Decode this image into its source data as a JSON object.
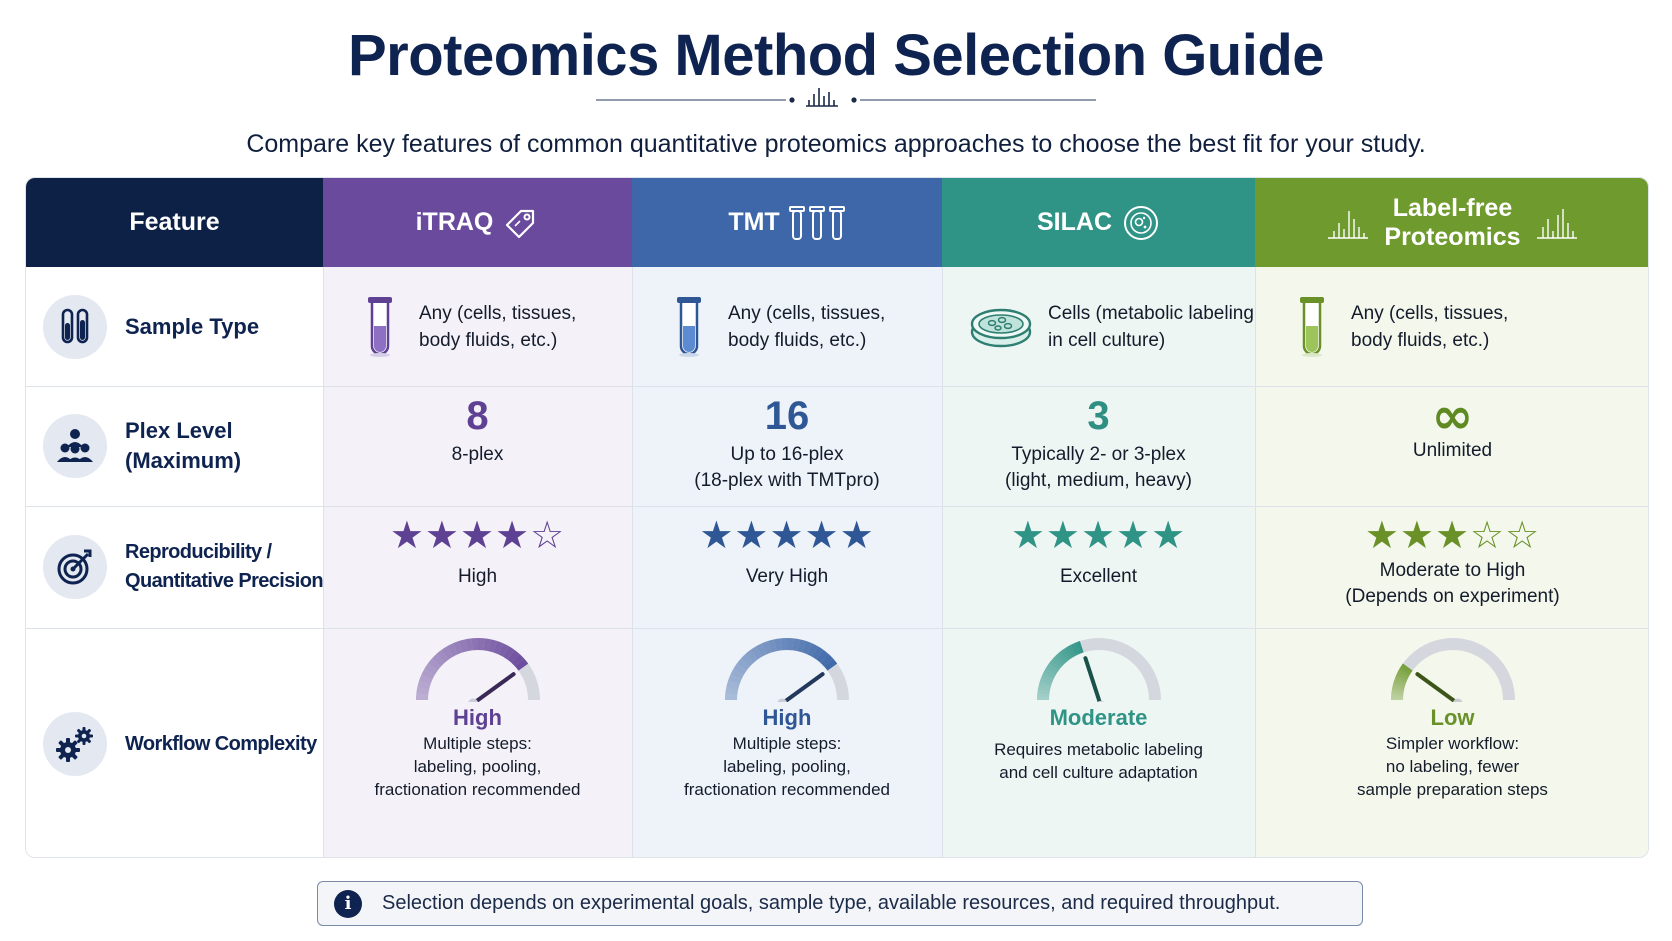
{
  "title": "Proteomics Method Selection Guide",
  "subtitle": "Compare key features of common quantitative proteomics approaches to choose the best fit for your study.",
  "header": {
    "feature": "Feature",
    "itraq": "iTRAQ",
    "tmt": "TMT",
    "silac": "SILAC",
    "labelfree_line1": "Label-free",
    "labelfree_line2": "Proteomics"
  },
  "features": {
    "sample_type": "Sample Type",
    "plex_line1": "Plex Level",
    "plex_line2": "(Maximum)",
    "repro_line1": "Reproducibility /",
    "repro_line2": "Quantitative Precision",
    "workflow": "Workflow Complexity"
  },
  "methods": {
    "itraq": {
      "color": "#6a4a9c",
      "sample_line1": "Any (cells, tissues,",
      "sample_line2": "body fluids, etc.)",
      "plex_num": "8",
      "plex_line1": "8-plex",
      "plex_line2": "",
      "stars": "★★★★☆",
      "star_rating": 4,
      "repro_line1": "High",
      "repro_line2": "",
      "gauge_level": 0.8,
      "complexity": "High",
      "complexity_line1": "Multiple steps:",
      "complexity_line2": "labeling, pooling,",
      "complexity_line3": "fractionation recommended"
    },
    "tmt": {
      "color": "#3d67a8",
      "sample_line1": "Any (cells, tissues,",
      "sample_line2": "body fluids, etc.)",
      "plex_num": "16",
      "plex_line1": "Up to 16-plex",
      "plex_line2": "(18-plex with TMTpro)",
      "stars": "★★★★★",
      "star_rating": 5,
      "repro_line1": "Very High",
      "repro_line2": "",
      "gauge_level": 0.8,
      "complexity": "High",
      "complexity_line1": "Multiple steps:",
      "complexity_line2": "labeling, pooling,",
      "complexity_line3": "fractionation recommended"
    },
    "silac": {
      "color": "#2f9486",
      "sample_line1": "Cells (metabolic labeling",
      "sample_line2": "in cell culture)",
      "plex_num": "3",
      "plex_line1": "Typically 2- or 3-plex",
      "plex_line2": "(light, medium, heavy)",
      "stars": "★★★★★",
      "star_rating": 5,
      "repro_line1": "Excellent",
      "repro_line2": "",
      "gauge_level": 0.4,
      "complexity": "Moderate",
      "complexity_line1": "Requires metabolic labeling",
      "complexity_line2": "and cell culture adaptation",
      "complexity_line3": ""
    },
    "labelfree": {
      "color": "#6f9a2e",
      "sample_line1": "Any (cells, tissues,",
      "sample_line2": "body fluids, etc.)",
      "plex_num": "∞",
      "plex_line1": "Unlimited",
      "plex_line2": "",
      "stars": "★★★☆☆",
      "star_rating": 3,
      "repro_line1": "Moderate to High",
      "repro_line2": "(Depends on experiment)",
      "gauge_level": 0.2,
      "complexity": "Low",
      "complexity_line1": "Simpler workflow:",
      "complexity_line2": "no labeling, fewer",
      "complexity_line3": "sample preparation steps"
    }
  },
  "note": "Selection depends on experimental goals, sample type, available resources, and required throughput.",
  "icons": [
    "test-tubes-icon",
    "people-group-icon",
    "target-icon",
    "gears-icon",
    "tag-icon",
    "tubes-icon",
    "cell-icon",
    "spectrum-icon",
    "test-tube-icon",
    "petri-dish-icon",
    "gauge-icon",
    "info-icon"
  ]
}
